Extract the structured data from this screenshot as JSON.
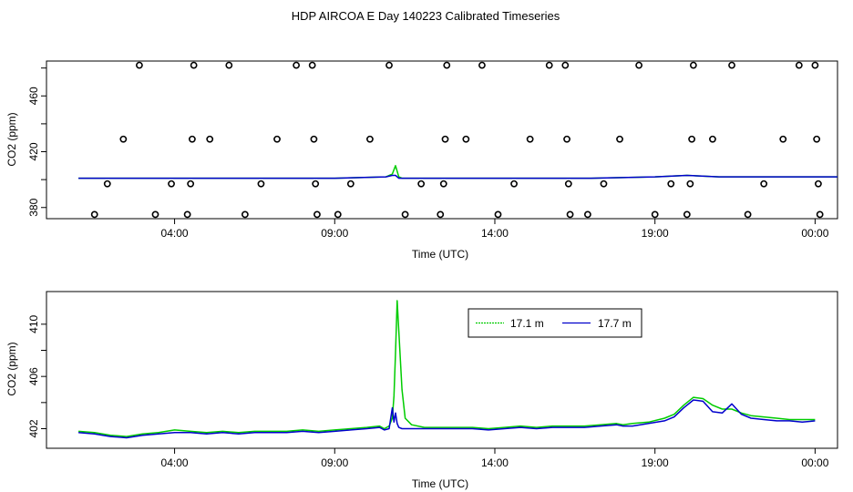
{
  "figure": {
    "title": "HDP AIRCOA E  Day 140223  Calibrated Timeseries"
  },
  "colors": {
    "green": "#00cc00",
    "blue": "#0000cc",
    "black": "#000000"
  },
  "chart_data": [
    {
      "type": "line",
      "panel": "top",
      "xlabel": "Time (UTC)",
      "ylabel": "CO2 (ppm)",
      "xlim": [
        0,
        24.7
      ],
      "ylim": [
        372,
        485
      ],
      "x_ticks": [
        {
          "value": 4.0,
          "label": "04:00"
        },
        {
          "value": 9.0,
          "label": "09:00"
        },
        {
          "value": 14.0,
          "label": "14:00"
        },
        {
          "value": 19.0,
          "label": "19:00"
        },
        {
          "value": 24.0,
          "label": "00:00"
        }
      ],
      "y_ticks": [
        380,
        420,
        460
      ],
      "extra_y_ticks": [
        400,
        440,
        480
      ],
      "series": [
        {
          "color": "#00cc00",
          "x": [
            1.0,
            3,
            5,
            7,
            9,
            10.6,
            10.8,
            10.9,
            11.0,
            11.1,
            13,
            15,
            17,
            19,
            20.0,
            21,
            23,
            24.7
          ],
          "y": [
            401,
            401,
            401,
            401,
            401,
            402,
            404,
            410,
            402,
            401,
            401,
            401,
            401,
            402,
            403,
            402,
            402,
            402
          ]
        },
        {
          "color": "#0000cc",
          "x": [
            1.0,
            3,
            5,
            7,
            9,
            10.6,
            10.8,
            10.9,
            11.0,
            11.1,
            13,
            15,
            17,
            19,
            20.0,
            21,
            23,
            24.7
          ],
          "y": [
            401,
            401,
            401,
            401,
            401,
            402,
            403,
            403,
            401,
            401,
            401,
            401,
            401,
            402,
            403,
            402,
            402,
            402
          ]
        }
      ],
      "markers": {
        "symbol": "open-circle",
        "points": [
          {
            "x": 1.5,
            "y": 375
          },
          {
            "x": 1.9,
            "y": 397
          },
          {
            "x": 2.4,
            "y": 429
          },
          {
            "x": 2.9,
            "y": 482
          },
          {
            "x": 3.4,
            "y": 375
          },
          {
            "x": 3.9,
            "y": 397
          },
          {
            "x": 4.4,
            "y": 375
          },
          {
            "x": 4.5,
            "y": 397
          },
          {
            "x": 4.55,
            "y": 429
          },
          {
            "x": 4.6,
            "y": 482
          },
          {
            "x": 5.1,
            "y": 429
          },
          {
            "x": 5.7,
            "y": 482
          },
          {
            "x": 6.2,
            "y": 375
          },
          {
            "x": 6.7,
            "y": 397
          },
          {
            "x": 7.2,
            "y": 429
          },
          {
            "x": 7.8,
            "y": 482
          },
          {
            "x": 8.3,
            "y": 482
          },
          {
            "x": 8.35,
            "y": 429
          },
          {
            "x": 8.4,
            "y": 397
          },
          {
            "x": 8.45,
            "y": 375
          },
          {
            "x": 9.1,
            "y": 375
          },
          {
            "x": 9.5,
            "y": 397
          },
          {
            "x": 10.1,
            "y": 429
          },
          {
            "x": 10.7,
            "y": 482
          },
          {
            "x": 11.2,
            "y": 375
          },
          {
            "x": 11.7,
            "y": 397
          },
          {
            "x": 12.3,
            "y": 375
          },
          {
            "x": 12.4,
            "y": 397
          },
          {
            "x": 12.45,
            "y": 429
          },
          {
            "x": 12.5,
            "y": 482
          },
          {
            "x": 13.1,
            "y": 429
          },
          {
            "x": 13.6,
            "y": 482
          },
          {
            "x": 14.1,
            "y": 375
          },
          {
            "x": 14.6,
            "y": 397
          },
          {
            "x": 15.1,
            "y": 429
          },
          {
            "x": 15.7,
            "y": 482
          },
          {
            "x": 16.2,
            "y": 482
          },
          {
            "x": 16.25,
            "y": 429
          },
          {
            "x": 16.3,
            "y": 397
          },
          {
            "x": 16.35,
            "y": 375
          },
          {
            "x": 16.9,
            "y": 375
          },
          {
            "x": 17.4,
            "y": 397
          },
          {
            "x": 17.9,
            "y": 429
          },
          {
            "x": 18.5,
            "y": 482
          },
          {
            "x": 19.0,
            "y": 375
          },
          {
            "x": 19.5,
            "y": 397
          },
          {
            "x": 20.0,
            "y": 375
          },
          {
            "x": 20.1,
            "y": 397
          },
          {
            "x": 20.15,
            "y": 429
          },
          {
            "x": 20.2,
            "y": 482
          },
          {
            "x": 20.8,
            "y": 429
          },
          {
            "x": 21.4,
            "y": 482
          },
          {
            "x": 21.9,
            "y": 375
          },
          {
            "x": 22.4,
            "y": 397
          },
          {
            "x": 23.0,
            "y": 429
          },
          {
            "x": 23.5,
            "y": 482
          },
          {
            "x": 24.0,
            "y": 482
          },
          {
            "x": 24.05,
            "y": 429
          },
          {
            "x": 24.1,
            "y": 397
          },
          {
            "x": 24.15,
            "y": 375
          }
        ]
      }
    },
    {
      "type": "line",
      "panel": "bottom",
      "xlabel": "Time (UTC)",
      "ylabel": "CO2 (ppm)",
      "xlim": [
        0,
        24.7
      ],
      "ylim": [
        400.5,
        412.5
      ],
      "x_ticks": [
        {
          "value": 4.0,
          "label": "04:00"
        },
        {
          "value": 9.0,
          "label": "09:00"
        },
        {
          "value": 14.0,
          "label": "14:00"
        },
        {
          "value": 19.0,
          "label": "19:00"
        },
        {
          "value": 24.0,
          "label": "00:00"
        }
      ],
      "y_ticks": [
        402,
        406,
        410
      ],
      "extra_y_ticks": [
        404,
        408
      ],
      "legend": {
        "position": "top-right",
        "entries": [
          {
            "label": "17.1 m",
            "color": "#00cc00"
          },
          {
            "label": "17.7 m",
            "color": "#0000cc"
          }
        ]
      },
      "series": [
        {
          "name": "17.1 m",
          "color": "#00cc00",
          "x": [
            1.0,
            1.5,
            2.0,
            2.5,
            3.0,
            3.5,
            4.0,
            4.5,
            5.0,
            5.5,
            6.0,
            6.5,
            7.0,
            7.5,
            8.0,
            8.5,
            9.0,
            9.5,
            10.0,
            10.4,
            10.55,
            10.7,
            10.8,
            10.85,
            10.9,
            10.95,
            11.0,
            11.1,
            11.2,
            11.4,
            11.8,
            12.3,
            12.8,
            13.3,
            13.8,
            14.3,
            14.8,
            15.3,
            15.8,
            16.3,
            16.8,
            17.3,
            17.8,
            18.0,
            18.3,
            18.8,
            19.3,
            19.6,
            19.9,
            20.2,
            20.5,
            20.8,
            21.1,
            21.4,
            21.7,
            22.0,
            22.4,
            22.8,
            23.2,
            23.6,
            24.0
          ],
          "y": [
            401.8,
            401.7,
            401.5,
            401.4,
            401.6,
            401.7,
            401.9,
            401.8,
            401.7,
            401.8,
            401.7,
            401.8,
            401.8,
            401.8,
            401.9,
            401.8,
            401.9,
            402.0,
            402.1,
            402.2,
            402.0,
            402.2,
            402.8,
            404.5,
            407.8,
            411.8,
            409.5,
            405.0,
            402.8,
            402.3,
            402.1,
            402.1,
            402.1,
            402.1,
            402.0,
            402.1,
            402.2,
            402.1,
            402.2,
            402.2,
            402.2,
            402.3,
            402.4,
            402.3,
            402.4,
            402.5,
            402.8,
            403.1,
            403.8,
            404.4,
            404.3,
            403.8,
            403.5,
            403.5,
            403.2,
            403.0,
            402.9,
            402.8,
            402.7,
            402.7,
            402.7
          ]
        },
        {
          "name": "17.7 m",
          "color": "#0000cc",
          "x": [
            1.0,
            1.5,
            2.0,
            2.5,
            3.0,
            3.5,
            4.0,
            4.5,
            5.0,
            5.5,
            6.0,
            6.5,
            7.0,
            7.5,
            8.0,
            8.5,
            9.0,
            9.5,
            10.0,
            10.4,
            10.55,
            10.7,
            10.8,
            10.85,
            10.9,
            10.95,
            11.0,
            11.1,
            11.2,
            11.4,
            11.8,
            12.3,
            12.8,
            13.3,
            13.8,
            14.3,
            14.8,
            15.3,
            15.8,
            16.3,
            16.8,
            17.3,
            17.8,
            18.0,
            18.3,
            18.8,
            19.3,
            19.6,
            19.9,
            20.2,
            20.5,
            20.8,
            21.1,
            21.4,
            21.7,
            22.0,
            22.4,
            22.8,
            23.2,
            23.6,
            24.0
          ],
          "y": [
            401.7,
            401.6,
            401.4,
            401.3,
            401.5,
            401.6,
            401.7,
            401.7,
            401.6,
            401.7,
            401.6,
            401.7,
            401.7,
            401.7,
            401.8,
            401.7,
            401.8,
            401.9,
            402.0,
            402.1,
            401.9,
            402.0,
            403.6,
            402.5,
            403.2,
            402.4,
            402.1,
            402.0,
            402.0,
            402.0,
            402.0,
            402.0,
            402.0,
            402.0,
            401.9,
            402.0,
            402.1,
            402.0,
            402.1,
            402.1,
            402.1,
            402.2,
            402.3,
            402.2,
            402.2,
            402.4,
            402.6,
            402.9,
            403.6,
            404.2,
            404.1,
            403.3,
            403.2,
            403.9,
            403.1,
            402.8,
            402.7,
            402.6,
            402.6,
            402.5,
            402.6
          ]
        }
      ]
    }
  ]
}
